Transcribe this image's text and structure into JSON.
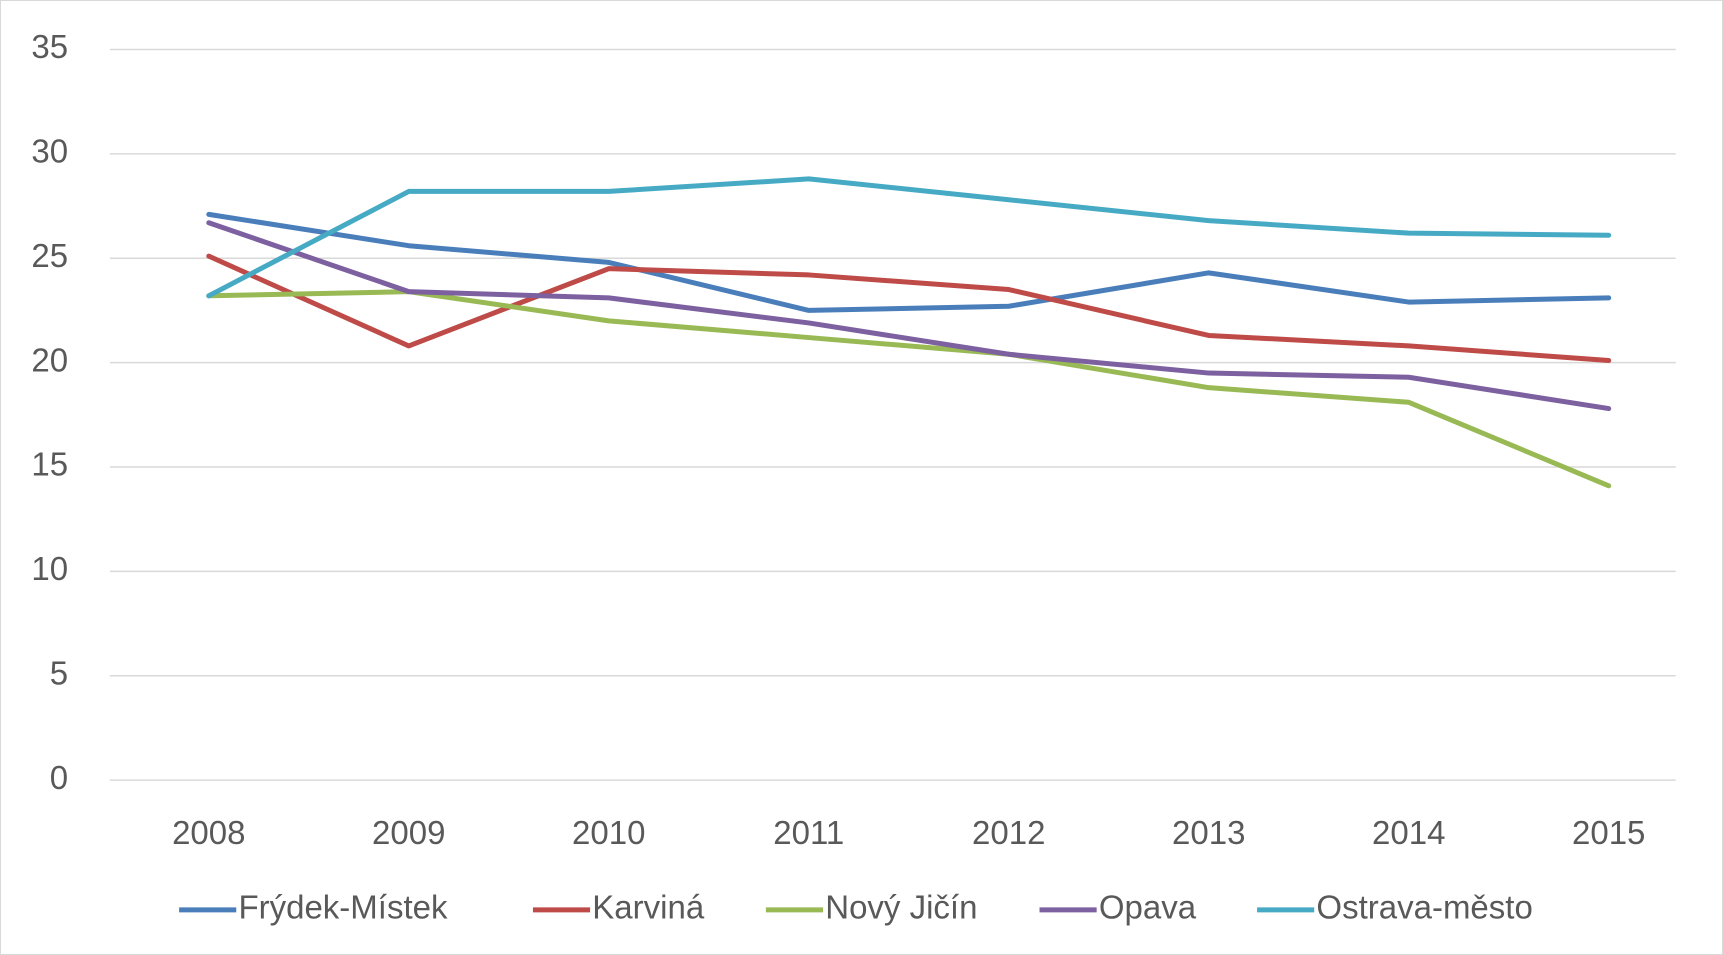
{
  "chart_data": {
    "type": "line",
    "categories": [
      "2008",
      "2009",
      "2010",
      "2011",
      "2012",
      "2013",
      "2014",
      "2015"
    ],
    "series": [
      {
        "name": "Frýdek-Místek",
        "color": "#4a7ebb",
        "values": [
          27.1,
          25.6,
          24.8,
          22.5,
          22.7,
          24.3,
          22.9,
          23.1
        ]
      },
      {
        "name": "Karviná",
        "color": "#be4b48",
        "values": [
          25.1,
          20.8,
          24.5,
          24.2,
          23.5,
          21.3,
          20.8,
          20.1
        ]
      },
      {
        "name": "Nový Jičín",
        "color": "#98b954",
        "values": [
          23.2,
          23.4,
          22.0,
          21.2,
          20.4,
          18.8,
          18.1,
          14.1
        ]
      },
      {
        "name": "Opava",
        "color": "#7d60a0",
        "values": [
          26.7,
          23.4,
          23.1,
          21.9,
          20.4,
          19.5,
          19.3,
          17.8
        ]
      },
      {
        "name": "Ostrava-město",
        "color": "#46aac5",
        "values": [
          23.2,
          28.2,
          28.2,
          28.8,
          27.8,
          26.8,
          26.2,
          26.1
        ]
      }
    ],
    "ylim": [
      0,
      35
    ],
    "yticks": [
      0,
      5,
      10,
      15,
      20,
      25,
      30,
      35
    ],
    "grid": true,
    "legend": "bottom"
  }
}
